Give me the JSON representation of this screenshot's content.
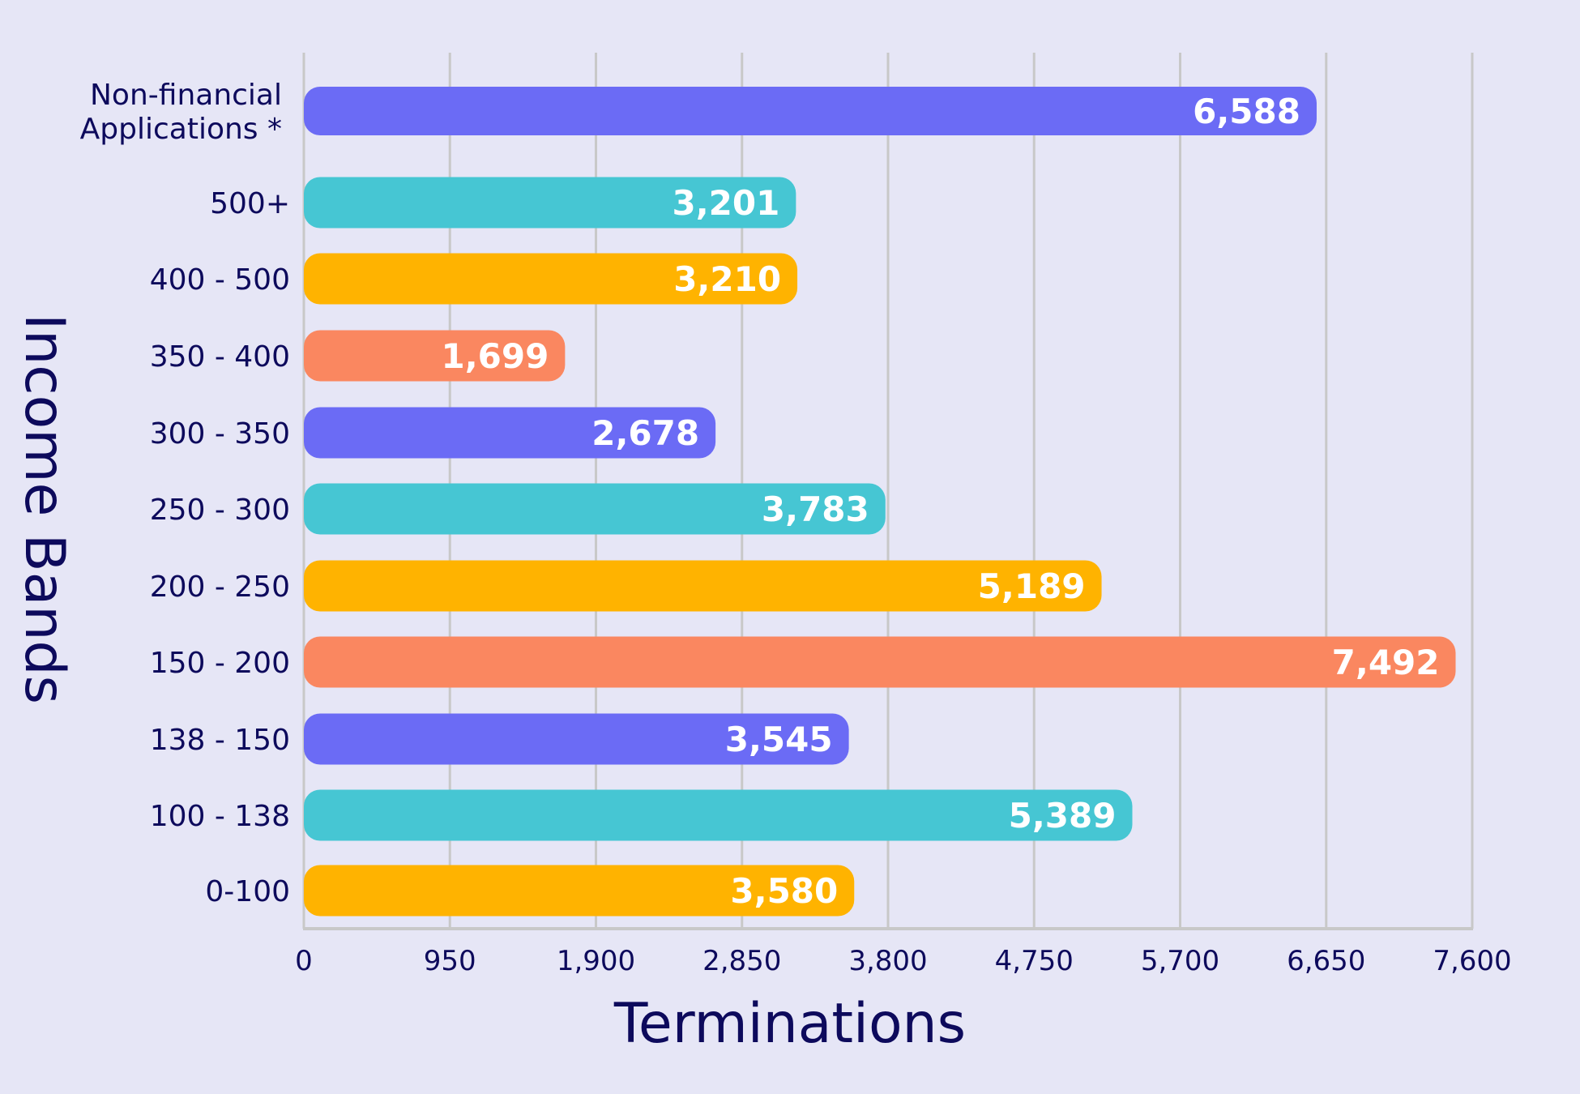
{
  "chart_data": {
    "type": "bar",
    "orientation": "horizontal",
    "title": "",
    "xlabel": "Terminations",
    "ylabel": "Income Bands",
    "xlim": [
      0,
      7600
    ],
    "xticks": [
      0,
      950,
      1900,
      2850,
      3800,
      4750,
      5700,
      6650,
      7600
    ],
    "xtick_labels": [
      "0",
      "950",
      "1,900",
      "2,850",
      "3,800",
      "4,750",
      "5,700",
      "6,650",
      "7,600"
    ],
    "grid": "vertical",
    "categories": [
      [
        "Non-financial",
        "Applications *"
      ],
      [
        "500+"
      ],
      [
        "400 - 500"
      ],
      [
        "350 - 400"
      ],
      [
        "300 - 350"
      ],
      [
        "250 - 300"
      ],
      [
        "200 - 250"
      ],
      [
        "150 - 200"
      ],
      [
        "138 - 150"
      ],
      [
        "100 - 138"
      ],
      [
        "0-100"
      ]
    ],
    "values": [
      6588,
      3201,
      3210,
      1699,
      2678,
      3783,
      5189,
      7492,
      3545,
      5389,
      3580
    ],
    "value_labels": [
      "6,588",
      "3,201",
      "3,210",
      "1,699",
      "2,678",
      "3,783",
      "5,189",
      "7,492",
      "3,545",
      "5,389",
      "3,580"
    ],
    "bar_colors": [
      "#6B6BF5",
      "#46C6D3",
      "#FFB300",
      "#FA8760",
      "#6B6BF5",
      "#46C6D3",
      "#FFB300",
      "#FA8760",
      "#6B6BF5",
      "#46C6D3",
      "#FFB300"
    ]
  },
  "colors": {
    "background": "#E6E6F6",
    "text": "#0D0A5C",
    "grid": "#C8C8C8"
  }
}
